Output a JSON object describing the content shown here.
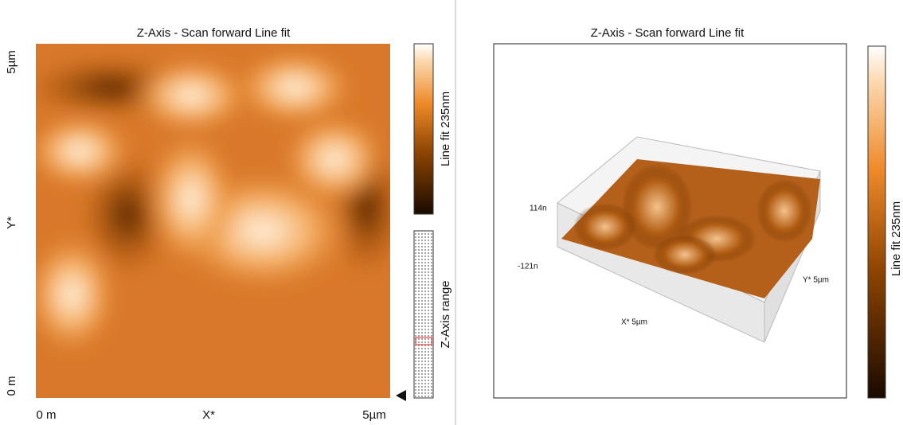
{
  "left_panel": {
    "title": "Z-Axis - Scan forward   Line fit",
    "y_axis": {
      "top": "5µm",
      "label": "Y*",
      "bottom": "0 m"
    },
    "x_axis": {
      "left": "0 m",
      "label": "X*",
      "right": "5µm"
    },
    "colorbar_label": "Line fit 235nm",
    "range_label": "Z-Axis range"
  },
  "right_panel": {
    "title": "Z-Axis - Scan forward   Line fit",
    "z_top": "114n",
    "z_bottom": "-121n",
    "x_axis_label": "X* 5µm",
    "y_axis_label": "Y* 5µm",
    "colorbar_label": "Line fit 235nm"
  }
}
